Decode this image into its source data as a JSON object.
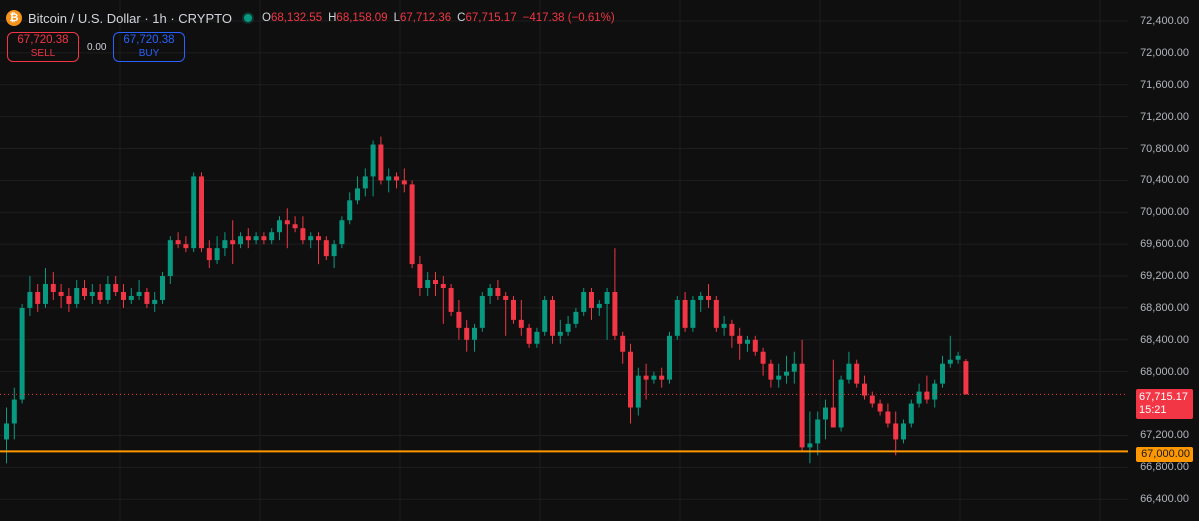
{
  "header": {
    "coin_icon": "bitcoin-icon",
    "coin_glyph": "₿",
    "title": "Bitcoin / U.S. Dollar · 1h · CRYPTO",
    "status_icon": "live-status-dot-icon",
    "ohlc": {
      "o_label": "O",
      "o_value": "68,132.55",
      "h_label": "H",
      "h_value": "68,158.09",
      "l_label": "L",
      "l_value": "67,712.36",
      "c_label": "C",
      "c_value": "67,715.17",
      "change": "−417.38 (−0.61%)"
    }
  },
  "trade": {
    "sell_price": "67,720.38",
    "sell_label": "SELL",
    "spread": "0.00",
    "buy_price": "67,720.38",
    "buy_label": "BUY"
  },
  "price_axis": {
    "ticks": [
      "72,400.00",
      "72,000.00",
      "71,600.00",
      "71,200.00",
      "70,800.00",
      "70,400.00",
      "70,000.00",
      "69,600.00",
      "69,200.00",
      "68,800.00",
      "68,400.00",
      "68,000.00",
      "67,200.00",
      "66,800.00",
      "66,400.00"
    ],
    "current_price": "67,715.17",
    "countdown": "15:21",
    "level_price": "67,000.00"
  },
  "colors": {
    "up": "#089981",
    "down": "#f23645",
    "level_line": "#ff9800",
    "background": "#0f0f0f",
    "grid": "#1e1e1e"
  },
  "chart_data": {
    "type": "candlestick",
    "symbol": "Bitcoin / U.S. Dollar",
    "interval": "1h",
    "ylim": [
      66400,
      72500
    ],
    "horizontal_level": 67000,
    "current_price": 67715.17,
    "candles": [
      {
        "o": 67150,
        "h": 67550,
        "l": 66850,
        "c": 67350
      },
      {
        "o": 67350,
        "h": 67800,
        "l": 67150,
        "c": 67650
      },
      {
        "o": 67650,
        "h": 68850,
        "l": 67600,
        "c": 68800
      },
      {
        "o": 68800,
        "h": 69200,
        "l": 68700,
        "c": 69000
      },
      {
        "o": 69000,
        "h": 69100,
        "l": 68750,
        "c": 68850
      },
      {
        "o": 68850,
        "h": 69300,
        "l": 68800,
        "c": 69100
      },
      {
        "o": 69100,
        "h": 69250,
        "l": 68900,
        "c": 69000
      },
      {
        "o": 69000,
        "h": 69100,
        "l": 68800,
        "c": 68950
      },
      {
        "o": 68950,
        "h": 69050,
        "l": 68750,
        "c": 68850
      },
      {
        "o": 68850,
        "h": 69150,
        "l": 68800,
        "c": 69050
      },
      {
        "o": 69050,
        "h": 69150,
        "l": 68900,
        "c": 68950
      },
      {
        "o": 68950,
        "h": 69100,
        "l": 68850,
        "c": 69000
      },
      {
        "o": 69000,
        "h": 69100,
        "l": 68850,
        "c": 68900
      },
      {
        "o": 68900,
        "h": 69200,
        "l": 68850,
        "c": 69100
      },
      {
        "o": 69100,
        "h": 69200,
        "l": 68950,
        "c": 69000
      },
      {
        "o": 69000,
        "h": 69100,
        "l": 68800,
        "c": 68900
      },
      {
        "o": 68900,
        "h": 69050,
        "l": 68850,
        "c": 68950
      },
      {
        "o": 68950,
        "h": 69150,
        "l": 68900,
        "c": 69000
      },
      {
        "o": 69000,
        "h": 69050,
        "l": 68800,
        "c": 68850
      },
      {
        "o": 68850,
        "h": 69000,
        "l": 68750,
        "c": 68900
      },
      {
        "o": 68900,
        "h": 69250,
        "l": 68850,
        "c": 69200
      },
      {
        "o": 69200,
        "h": 69700,
        "l": 69100,
        "c": 69650
      },
      {
        "o": 69650,
        "h": 69750,
        "l": 69550,
        "c": 69600
      },
      {
        "o": 69600,
        "h": 69700,
        "l": 69500,
        "c": 69550
      },
      {
        "o": 69550,
        "h": 70500,
        "l": 69500,
        "c": 70450
      },
      {
        "o": 70450,
        "h": 70500,
        "l": 69500,
        "c": 69550
      },
      {
        "o": 69550,
        "h": 69650,
        "l": 69300,
        "c": 69400
      },
      {
        "o": 69400,
        "h": 69700,
        "l": 69350,
        "c": 69550
      },
      {
        "o": 69550,
        "h": 69750,
        "l": 69450,
        "c": 69650
      },
      {
        "o": 69650,
        "h": 69900,
        "l": 69350,
        "c": 69600
      },
      {
        "o": 69600,
        "h": 69750,
        "l": 69550,
        "c": 69700
      },
      {
        "o": 69700,
        "h": 69800,
        "l": 69550,
        "c": 69650
      },
      {
        "o": 69650,
        "h": 69750,
        "l": 69600,
        "c": 69700
      },
      {
        "o": 69700,
        "h": 69750,
        "l": 69600,
        "c": 69650
      },
      {
        "o": 69650,
        "h": 69800,
        "l": 69600,
        "c": 69750
      },
      {
        "o": 69750,
        "h": 69950,
        "l": 69650,
        "c": 69900
      },
      {
        "o": 69900,
        "h": 70050,
        "l": 69550,
        "c": 69850
      },
      {
        "o": 69850,
        "h": 69950,
        "l": 69750,
        "c": 69800
      },
      {
        "o": 69800,
        "h": 69950,
        "l": 69600,
        "c": 69650
      },
      {
        "o": 69650,
        "h": 69750,
        "l": 69550,
        "c": 69700
      },
      {
        "o": 69700,
        "h": 69750,
        "l": 69350,
        "c": 69650
      },
      {
        "o": 69650,
        "h": 69700,
        "l": 69400,
        "c": 69450
      },
      {
        "o": 69450,
        "h": 69650,
        "l": 69300,
        "c": 69600
      },
      {
        "o": 69600,
        "h": 69950,
        "l": 69550,
        "c": 69900
      },
      {
        "o": 69900,
        "h": 70250,
        "l": 69850,
        "c": 70150
      },
      {
        "o": 70150,
        "h": 70450,
        "l": 70100,
        "c": 70300
      },
      {
        "o": 70300,
        "h": 70550,
        "l": 70200,
        "c": 70450
      },
      {
        "o": 70450,
        "h": 70900,
        "l": 70200,
        "c": 70850
      },
      {
        "o": 70850,
        "h": 70950,
        "l": 70350,
        "c": 70400
      },
      {
        "o": 70400,
        "h": 70550,
        "l": 70250,
        "c": 70450
      },
      {
        "o": 70450,
        "h": 70500,
        "l": 70300,
        "c": 70400
      },
      {
        "o": 70400,
        "h": 70550,
        "l": 70250,
        "c": 70350
      },
      {
        "o": 70350,
        "h": 70400,
        "l": 69300,
        "c": 69350
      },
      {
        "o": 69350,
        "h": 69450,
        "l": 68950,
        "c": 69050
      },
      {
        "o": 69050,
        "h": 69250,
        "l": 68950,
        "c": 69150
      },
      {
        "o": 69150,
        "h": 69250,
        "l": 68950,
        "c": 69100
      },
      {
        "o": 69100,
        "h": 69200,
        "l": 68600,
        "c": 69050
      },
      {
        "o": 69050,
        "h": 69100,
        "l": 68700,
        "c": 68750
      },
      {
        "o": 68750,
        "h": 68900,
        "l": 68400,
        "c": 68550
      },
      {
        "o": 68550,
        "h": 68650,
        "l": 68250,
        "c": 68400
      },
      {
        "o": 68400,
        "h": 68600,
        "l": 68250,
        "c": 68550
      },
      {
        "o": 68550,
        "h": 69000,
        "l": 68500,
        "c": 68950
      },
      {
        "o": 68950,
        "h": 69100,
        "l": 68850,
        "c": 69050
      },
      {
        "o": 69050,
        "h": 69150,
        "l": 68900,
        "c": 68950
      },
      {
        "o": 68950,
        "h": 69000,
        "l": 68450,
        "c": 68900
      },
      {
        "o": 68900,
        "h": 68950,
        "l": 68600,
        "c": 68650
      },
      {
        "o": 68650,
        "h": 68900,
        "l": 68450,
        "c": 68550
      },
      {
        "o": 68550,
        "h": 68600,
        "l": 68300,
        "c": 68350
      },
      {
        "o": 68350,
        "h": 68550,
        "l": 68300,
        "c": 68500
      },
      {
        "o": 68500,
        "h": 68950,
        "l": 68450,
        "c": 68900
      },
      {
        "o": 68900,
        "h": 68950,
        "l": 68350,
        "c": 68450
      },
      {
        "o": 68450,
        "h": 68650,
        "l": 68350,
        "c": 68500
      },
      {
        "o": 68500,
        "h": 68700,
        "l": 68450,
        "c": 68600
      },
      {
        "o": 68600,
        "h": 68800,
        "l": 68550,
        "c": 68750
      },
      {
        "o": 68750,
        "h": 69050,
        "l": 68700,
        "c": 69000
      },
      {
        "o": 69000,
        "h": 69050,
        "l": 68650,
        "c": 68800
      },
      {
        "o": 68800,
        "h": 68900,
        "l": 68700,
        "c": 68850
      },
      {
        "o": 68850,
        "h": 69050,
        "l": 68400,
        "c": 69000
      },
      {
        "o": 69000,
        "h": 69550,
        "l": 68400,
        "c": 68450
      },
      {
        "o": 68450,
        "h": 68500,
        "l": 68100,
        "c": 68250
      },
      {
        "o": 68250,
        "h": 68350,
        "l": 67350,
        "c": 67550
      },
      {
        "o": 67550,
        "h": 68050,
        "l": 67450,
        "c": 67950
      },
      {
        "o": 67950,
        "h": 68100,
        "l": 67650,
        "c": 67900
      },
      {
        "o": 67900,
        "h": 68000,
        "l": 67850,
        "c": 67950
      },
      {
        "o": 67950,
        "h": 68050,
        "l": 67800,
        "c": 67900
      },
      {
        "o": 67900,
        "h": 68500,
        "l": 67850,
        "c": 68450
      },
      {
        "o": 68450,
        "h": 68950,
        "l": 68400,
        "c": 68900
      },
      {
        "o": 68900,
        "h": 69000,
        "l": 68500,
        "c": 68550
      },
      {
        "o": 68550,
        "h": 68950,
        "l": 68500,
        "c": 68900
      },
      {
        "o": 68900,
        "h": 69000,
        "l": 68750,
        "c": 68950
      },
      {
        "o": 68950,
        "h": 69100,
        "l": 68800,
        "c": 68900
      },
      {
        "o": 68900,
        "h": 68950,
        "l": 68500,
        "c": 68550
      },
      {
        "o": 68550,
        "h": 68700,
        "l": 68450,
        "c": 68600
      },
      {
        "o": 68600,
        "h": 68650,
        "l": 68300,
        "c": 68450
      },
      {
        "o": 68450,
        "h": 68550,
        "l": 68150,
        "c": 68350
      },
      {
        "o": 68350,
        "h": 68450,
        "l": 68250,
        "c": 68400
      },
      {
        "o": 68400,
        "h": 68450,
        "l": 68200,
        "c": 68250
      },
      {
        "o": 68250,
        "h": 68300,
        "l": 67950,
        "c": 68100
      },
      {
        "o": 68100,
        "h": 68150,
        "l": 67800,
        "c": 67900
      },
      {
        "o": 67900,
        "h": 68100,
        "l": 67800,
        "c": 67950
      },
      {
        "o": 67950,
        "h": 68200,
        "l": 67850,
        "c": 68000
      },
      {
        "o": 68000,
        "h": 68250,
        "l": 67850,
        "c": 68100
      },
      {
        "o": 68100,
        "h": 68400,
        "l": 67000,
        "c": 67050
      },
      {
        "o": 67050,
        "h": 67500,
        "l": 66850,
        "c": 67100
      },
      {
        "o": 67100,
        "h": 67500,
        "l": 66950,
        "c": 67400
      },
      {
        "o": 67400,
        "h": 67650,
        "l": 67150,
        "c": 67550
      },
      {
        "o": 67550,
        "h": 68150,
        "l": 67300,
        "c": 67300
      },
      {
        "o": 67300,
        "h": 67950,
        "l": 67250,
        "c": 67900
      },
      {
        "o": 67900,
        "h": 68250,
        "l": 67850,
        "c": 68100
      },
      {
        "o": 68100,
        "h": 68150,
        "l": 67800,
        "c": 67850
      },
      {
        "o": 67850,
        "h": 67950,
        "l": 67650,
        "c": 67700
      },
      {
        "o": 67700,
        "h": 67750,
        "l": 67550,
        "c": 67600
      },
      {
        "o": 67600,
        "h": 67650,
        "l": 67450,
        "c": 67500
      },
      {
        "o": 67500,
        "h": 67600,
        "l": 67300,
        "c": 67350
      },
      {
        "o": 67350,
        "h": 67500,
        "l": 66950,
        "c": 67150
      },
      {
        "o": 67150,
        "h": 67400,
        "l": 67100,
        "c": 67350
      },
      {
        "o": 67350,
        "h": 67650,
        "l": 67300,
        "c": 67600
      },
      {
        "o": 67600,
        "h": 67850,
        "l": 67550,
        "c": 67750
      },
      {
        "o": 67750,
        "h": 67950,
        "l": 67600,
        "c": 67650
      },
      {
        "o": 67650,
        "h": 67900,
        "l": 67550,
        "c": 67850
      },
      {
        "o": 67850,
        "h": 68200,
        "l": 67800,
        "c": 68100
      },
      {
        "o": 68100,
        "h": 68450,
        "l": 68050,
        "c": 68150
      },
      {
        "o": 68150,
        "h": 68250,
        "l": 68100,
        "c": 68200
      },
      {
        "o": 68132.55,
        "h": 68158.09,
        "l": 67712.36,
        "c": 67715.17
      }
    ]
  }
}
